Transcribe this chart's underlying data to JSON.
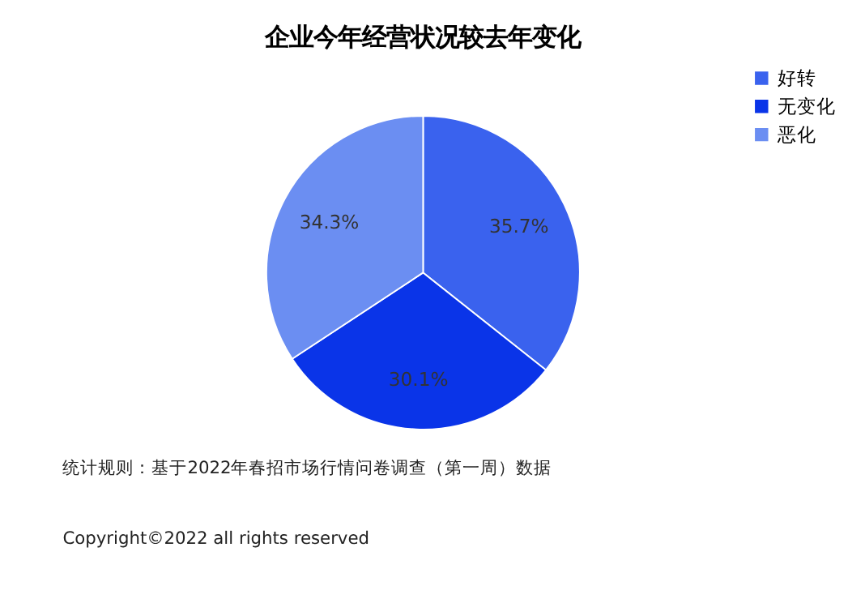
{
  "chart_data": {
    "type": "pie",
    "title": "企业今年经营状况较去年变化",
    "categories": [
      "好转",
      "无变化",
      "恶化"
    ],
    "values": [
      35.7,
      30.1,
      34.3
    ],
    "colors": [
      "#3a62ee",
      "#0a34e8",
      "#6b8ef2"
    ],
    "value_labels": [
      "35.7%",
      "30.1%",
      "34.3%"
    ],
    "legend": "right",
    "annotations": [
      "统计规则：基于2022年春招市场行情问卷调查（第一周）数据",
      "Copyright©2022 all rights reserved"
    ]
  }
}
